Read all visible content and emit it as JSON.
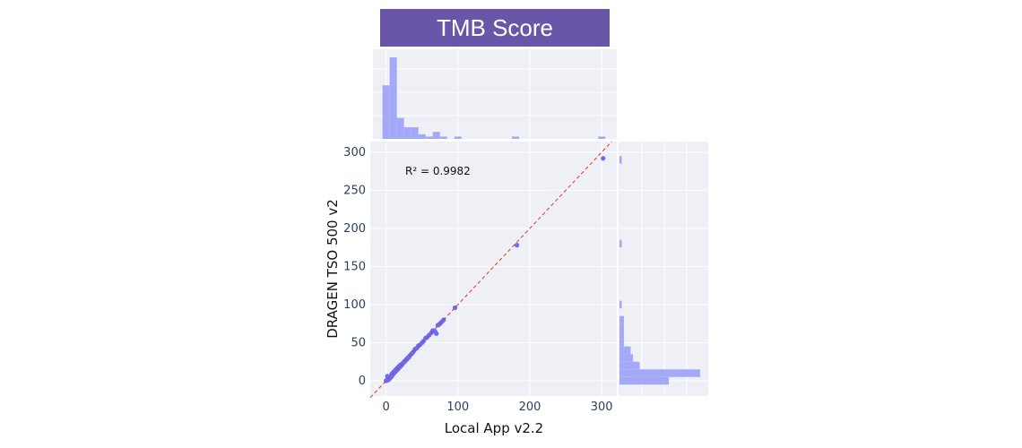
{
  "header": {
    "title": "TMB Score"
  },
  "chart_data": {
    "type": "scatter",
    "title": "TMB Score",
    "xlabel": "Local App v2.2",
    "ylabel": "DRAGEN TSO 500 v2",
    "annotation": "R² = 0.9982",
    "xlim": [
      -22,
      321
    ],
    "ylim": [
      -20,
      314
    ],
    "xticks": [
      0,
      100,
      200,
      300
    ],
    "yticks": [
      0,
      50,
      100,
      150,
      200,
      250,
      300
    ],
    "grid": true,
    "colors": {
      "points": "#636efa",
      "fit_line": "#e8302a",
      "histogram": "#a4a9f7",
      "plot_bg": "#eef0f6",
      "title_bg": "#6a56a8"
    },
    "fit_line": {
      "style": "dashed",
      "slope": 1,
      "intercept": 0
    },
    "points": [
      [
        0,
        0
      ],
      [
        1,
        1
      ],
      [
        2,
        6
      ],
      [
        2,
        2
      ],
      [
        3,
        1
      ],
      [
        3,
        3
      ],
      [
        4,
        2
      ],
      [
        4,
        4
      ],
      [
        5,
        5
      ],
      [
        5,
        3
      ],
      [
        6,
        4
      ],
      [
        6,
        6
      ],
      [
        7,
        5
      ],
      [
        7,
        7
      ],
      [
        8,
        6
      ],
      [
        8,
        9
      ],
      [
        9,
        8
      ],
      [
        9,
        10
      ],
      [
        10,
        9
      ],
      [
        10,
        11
      ],
      [
        11,
        10
      ],
      [
        11,
        12
      ],
      [
        12,
        11
      ],
      [
        12,
        13
      ],
      [
        13,
        12
      ],
      [
        13,
        14
      ],
      [
        14,
        13
      ],
      [
        14,
        15
      ],
      [
        15,
        14
      ],
      [
        15,
        16
      ],
      [
        16,
        15
      ],
      [
        16,
        17
      ],
      [
        17,
        16
      ],
      [
        18,
        17
      ],
      [
        18,
        19
      ],
      [
        19,
        18
      ],
      [
        20,
        19
      ],
      [
        20,
        21
      ],
      [
        21,
        20
      ],
      [
        22,
        22
      ],
      [
        23,
        22
      ],
      [
        24,
        24
      ],
      [
        25,
        25
      ],
      [
        26,
        25
      ],
      [
        27,
        27
      ],
      [
        28,
        28
      ],
      [
        29,
        28
      ],
      [
        30,
        30
      ],
      [
        32,
        31
      ],
      [
        33,
        33
      ],
      [
        35,
        35
      ],
      [
        36,
        36
      ],
      [
        38,
        38
      ],
      [
        40,
        41
      ],
      [
        41,
        42
      ],
      [
        43,
        43
      ],
      [
        45,
        46
      ],
      [
        47,
        47
      ],
      [
        50,
        50
      ],
      [
        52,
        52
      ],
      [
        55,
        56
      ],
      [
        57,
        57
      ],
      [
        60,
        60
      ],
      [
        63,
        63
      ],
      [
        65,
        66
      ],
      [
        68,
        65
      ],
      [
        70,
        62
      ],
      [
        72,
        73
      ],
      [
        74,
        74
      ],
      [
        76,
        76
      ],
      [
        78,
        78
      ],
      [
        80,
        80
      ],
      [
        96,
        96
      ],
      [
        182,
        178
      ],
      [
        302,
        292
      ]
    ],
    "top_histogram": {
      "bin_width": 10,
      "bin_starts": [
        -5,
        5,
        15,
        25,
        35,
        45,
        55,
        65,
        75,
        95,
        175,
        295
      ],
      "counts": [
        23,
        35,
        9,
        5,
        5,
        2,
        1,
        3,
        1,
        1,
        1,
        1
      ]
    },
    "right_histogram": {
      "bin_width": 10,
      "bin_starts": [
        -5,
        5,
        15,
        25,
        35,
        45,
        55,
        65,
        75,
        95,
        175,
        285
      ],
      "counts": [
        22,
        36,
        9,
        6,
        5,
        2,
        2,
        2,
        2,
        1,
        1,
        1
      ]
    }
  }
}
